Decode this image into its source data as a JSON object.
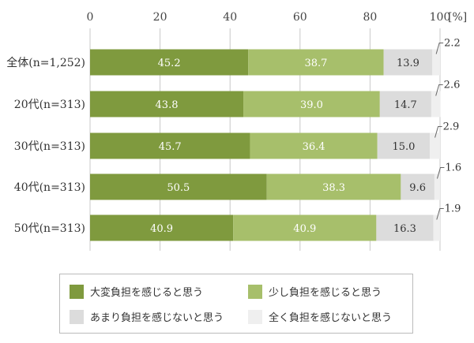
{
  "chart_data": {
    "type": "bar",
    "orientation": "horizontal",
    "stacked": true,
    "categories": [
      "全体(n=1,252)",
      "20代(n=313)",
      "30代(n=313)",
      "40代(n=313)",
      "50代(n=313)"
    ],
    "series": [
      {
        "name": "大変負担を感じると思う",
        "values": [
          45.2,
          43.8,
          45.7,
          50.5,
          40.9
        ],
        "color": "#7f9a3e"
      },
      {
        "name": "少し負担を感じると思う",
        "values": [
          38.7,
          39.0,
          36.4,
          38.3,
          40.9
        ],
        "color": "#a7bf6b"
      },
      {
        "name": "あまり負担を感じないと思う",
        "values": [
          13.9,
          14.7,
          15.0,
          9.6,
          16.3
        ],
        "color": "#dcdcdc"
      },
      {
        "name": "全く負担を感じないと思う",
        "values": [
          2.2,
          2.6,
          2.9,
          1.6,
          1.9
        ],
        "color": "#efefef"
      }
    ],
    "x_ticks": [
      "0",
      "20",
      "40",
      "60",
      "80",
      "100"
    ],
    "x_unit": "[%]",
    "xlim": [
      0,
      100
    ],
    "legend_position": "bottom",
    "grid": true
  }
}
